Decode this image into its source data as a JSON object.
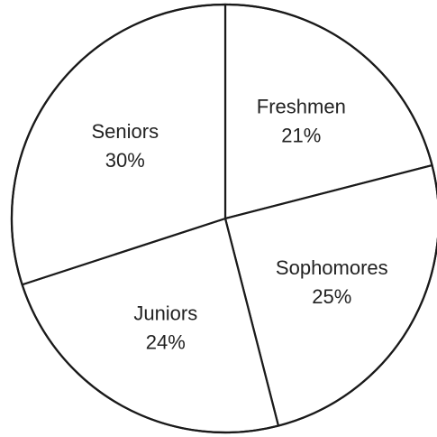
{
  "chart_data": {
    "type": "pie",
    "slices": [
      {
        "label": "Freshmen",
        "value": 21,
        "value_text": "21%"
      },
      {
        "label": "Sophomores",
        "value": 25,
        "value_text": "25%"
      },
      {
        "label": "Juniors",
        "value": 24,
        "value_text": "24%"
      },
      {
        "label": "Seniors",
        "value": 30,
        "value_text": "30%"
      }
    ],
    "start_angle_deg": 0,
    "direction": "clockwise",
    "legend": "none",
    "fill_color": "#ffffff",
    "stroke_color": "#1a1a1a"
  }
}
